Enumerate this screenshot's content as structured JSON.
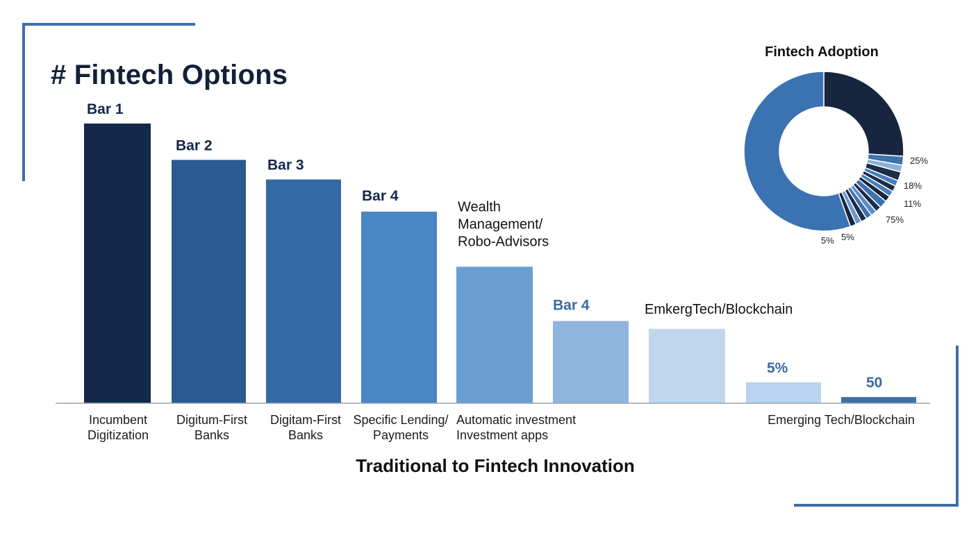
{
  "page": {
    "title": "# Fintech Options"
  },
  "colors": {
    "frame": "#3e6fa3"
  },
  "chart_data": [
    {
      "type": "bar",
      "xlabel": "Traditional to Fintech Innovation",
      "ylim": [
        0,
        100
      ],
      "grid": false,
      "bars": [
        {
          "label": "Bar 1",
          "category": [
            "Incumbent",
            "Digitization"
          ],
          "value": 100,
          "color": "#14284a"
        },
        {
          "label": "Bar 2",
          "category": [
            "Digitum-First",
            "Banks"
          ],
          "value": 87,
          "color": "#2a5a90"
        },
        {
          "label": "Bar 3",
          "category": [
            "Digitam-First",
            "Banks"
          ],
          "value": 80,
          "color": "#336aa6"
        },
        {
          "label": "Bar 4",
          "category": [
            "Specific Lending/",
            "Payments"
          ],
          "value": 68.5,
          "color": "#4a85c4"
        },
        {
          "label": "Wealth Management/ Robo-Advisors",
          "label_lines": [
            "Wealth",
            "Management/",
            "Robo-Advisors"
          ],
          "category": [
            "Automatic investment",
            "Investment apps"
          ],
          "value": 48.8,
          "color": "#6b9fd1"
        },
        {
          "label": "Bar 4",
          "category": [],
          "value": 29.4,
          "color": "#8fb5de"
        },
        {
          "label": "EmkergTech/Blockchain",
          "category": [],
          "value": 26.6,
          "color": "#c0d6ec"
        },
        {
          "label": "5%",
          "category": [],
          "value": 7.5,
          "color": "#bad3ee"
        },
        {
          "label": "50",
          "category": [
            "Emerging Tech/Blockchain"
          ],
          "value": 2.2,
          "color": "#3f71a6"
        }
      ]
    },
    {
      "type": "pie",
      "title": "Fintech Adoption",
      "hole": true,
      "slices": [
        {
          "value": 26,
          "color": "#17253f"
        },
        {
          "value": 1.8,
          "color": "#3f73ad"
        },
        {
          "value": 1.4,
          "color": "#8bb1dd"
        },
        {
          "value": 1.8,
          "color": "#1c2b47"
        },
        {
          "value": 1.2,
          "color": "#4a7dbc"
        },
        {
          "value": 1.2,
          "color": "#1c2b47"
        },
        {
          "value": 1.2,
          "color": "#4a7dbc"
        },
        {
          "value": 1.2,
          "color": "#17253f"
        },
        {
          "value": 1.6,
          "color": "#3e72ad"
        },
        {
          "value": 1.2,
          "color": "#1c2b47"
        },
        {
          "value": 1.2,
          "color": "#5b8cc8"
        },
        {
          "value": 1.2,
          "color": "#3e72ad"
        },
        {
          "value": 1.2,
          "color": "#1c2b47"
        },
        {
          "value": 1.2,
          "color": "#6a98d0"
        },
        {
          "value": 1.2,
          "color": "#17253f"
        },
        {
          "value": 55.4,
          "color": "#3b72b1"
        }
      ],
      "labels": [
        "25%",
        "18%",
        "11%",
        "75%",
        "5%",
        "5%"
      ]
    }
  ]
}
